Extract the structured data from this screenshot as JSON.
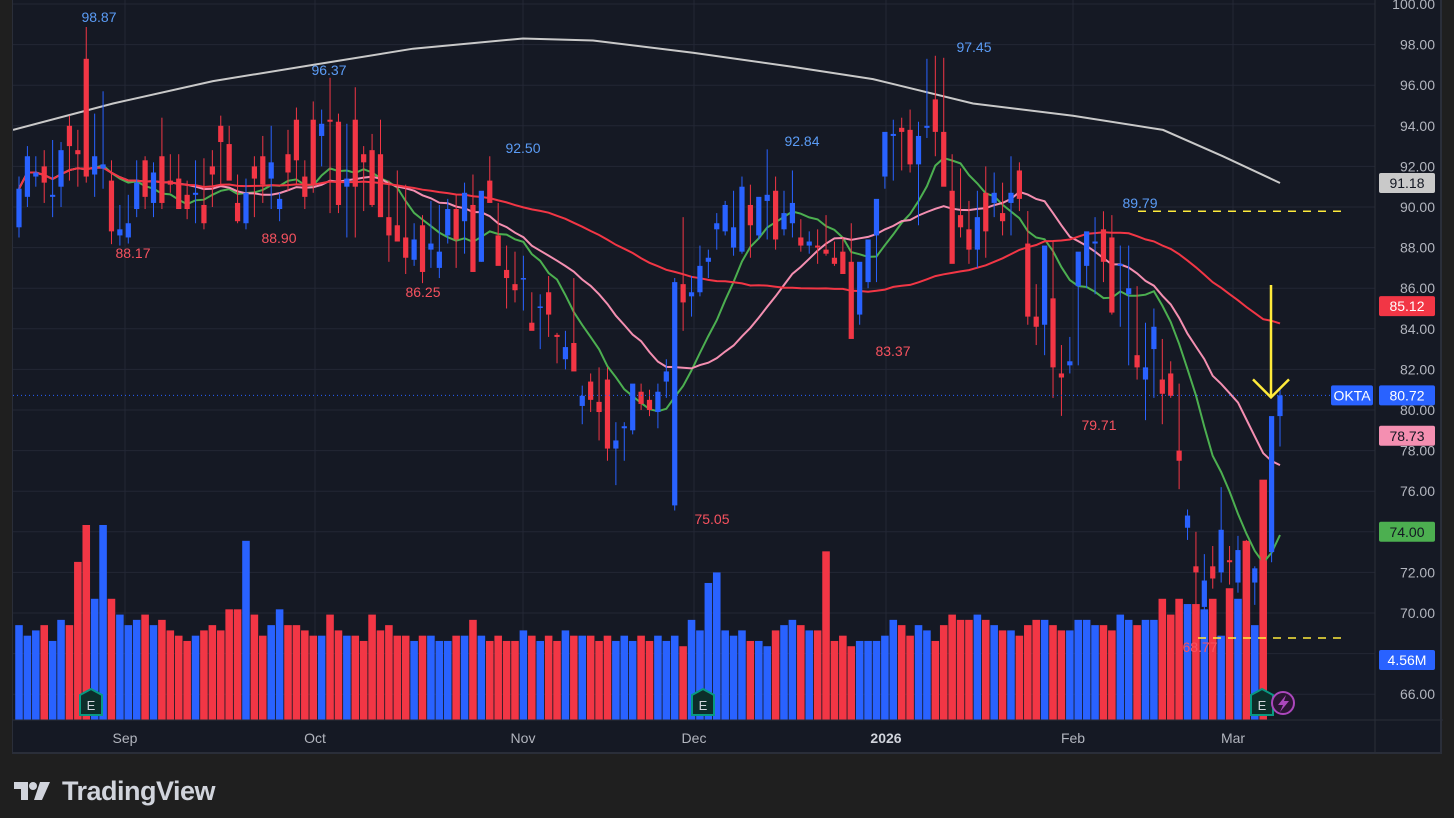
{
  "chart_data": {
    "type": "candlestick",
    "symbol": "OKTA",
    "title": "",
    "xlabel": "",
    "ylabel": "",
    "ylim": [
      65,
      100
    ],
    "grid": true,
    "x_tick_labels": [
      "Sep",
      "Oct",
      "Nov",
      "Dec",
      "2026",
      "Feb",
      "Mar"
    ],
    "y_tick_labels": [
      "100.00",
      "98.00",
      "96.00",
      "94.00",
      "92.00",
      "90.00",
      "88.00",
      "86.00",
      "84.00",
      "82.00",
      "80.00",
      "78.00",
      "76.00",
      "74.00",
      "72.00",
      "70.00",
      "66.00"
    ],
    "high_low_annotations": [
      {
        "label": "98.87",
        "type": "high"
      },
      {
        "label": "88.17",
        "type": "low"
      },
      {
        "label": "96.37",
        "type": "high"
      },
      {
        "label": "88.90",
        "type": "low"
      },
      {
        "label": "86.25",
        "type": "low"
      },
      {
        "label": "92.50",
        "type": "high"
      },
      {
        "label": "75.05",
        "type": "low"
      },
      {
        "label": "92.84",
        "type": "high"
      },
      {
        "label": "83.37",
        "type": "low"
      },
      {
        "label": "97.45",
        "type": "high"
      },
      {
        "label": "79.71",
        "type": "low"
      },
      {
        "label": "89.79",
        "type": "high"
      },
      {
        "label": "68.77",
        "type": "low"
      }
    ],
    "price_labels": [
      {
        "name": "MA200",
        "value": "91.18",
        "color": "#c9c9c9"
      },
      {
        "name": "MA50",
        "value": "85.12",
        "color": "#f23645"
      },
      {
        "name": "OKTA last",
        "value": "80.72",
        "color": "#2962ff"
      },
      {
        "name": "MA20",
        "value": "78.73",
        "color": "#f48fb1"
      },
      {
        "name": "MA10",
        "value": "74.00",
        "color": "#4caf50"
      },
      {
        "name": "Volume",
        "value": "4.56M",
        "color": "#2962ff"
      }
    ],
    "horizontal_lines": [
      {
        "value": 89.79,
        "style": "dashed",
        "color": "#ffeb3b"
      },
      {
        "value": 68.77,
        "style": "dashed",
        "color": "#ffeb3b"
      },
      {
        "value": 80.72,
        "style": "dotted",
        "color": "#2962ff"
      }
    ],
    "annotation_arrow": {
      "color": "#ffeb3b",
      "direction": "down",
      "points_to": 80.72
    },
    "earnings_markers": [
      "Sep",
      "Dec",
      "Mar"
    ],
    "candles": [
      [
        89,
        91.5,
        88.5,
        90.9
      ],
      [
        90.5,
        93,
        90,
        92.5
      ],
      [
        91.5,
        92.5,
        91,
        91.7
      ],
      [
        92,
        92.8,
        90.2,
        91.2
      ],
      [
        90.5,
        93.3,
        89.5,
        90.6
      ],
      [
        91,
        93.2,
        90,
        92.8
      ],
      [
        94,
        94.5,
        91.3,
        93
      ],
      [
        92.8,
        93.8,
        91,
        92.6
      ],
      [
        97.3,
        98.87,
        91.2,
        91.5
      ],
      [
        91.6,
        94.6,
        90.5,
        92.5
      ],
      [
        91.9,
        95.7,
        90.9,
        92.1
      ],
      [
        91.3,
        92.3,
        88.17,
        88.8
      ],
      [
        88.6,
        90.1,
        88.1,
        88.9
      ],
      [
        88.5,
        90.6,
        88.2,
        89.2
      ],
      [
        89.9,
        92.3,
        89.5,
        91.2
      ],
      [
        92.3,
        92.5,
        89.9,
        90.5
      ],
      [
        90.2,
        92.2,
        89.5,
        91.7
      ],
      [
        92.5,
        94.4,
        89.9,
        90.2
      ],
      [
        91.3,
        92.6,
        90.7,
        91.1
      ],
      [
        91.4,
        92.6,
        89.9,
        89.9
      ],
      [
        90.6,
        91.3,
        89.4,
        89.9
      ],
      [
        90.6,
        92.3,
        89.2,
        90.7
      ],
      [
        90.1,
        92.4,
        88.9,
        89.2
      ],
      [
        92,
        92.8,
        90,
        91.6
      ],
      [
        94,
        94.5,
        91.1,
        93.2
      ],
      [
        93.1,
        94,
        91.5,
        91.3
      ],
      [
        90.2,
        91.6,
        89.2,
        89.3
      ],
      [
        89.2,
        91.4,
        88.9,
        90.7
      ],
      [
        92,
        92.5,
        89.5,
        91.4
      ],
      [
        92.5,
        93.5,
        90.2,
        91.1
      ],
      [
        91.4,
        94,
        89.9,
        92.2
      ],
      [
        89.9,
        90.7,
        89.3,
        90.4
      ],
      [
        92.6,
        93.8,
        90.8,
        91.7
      ],
      [
        94.3,
        94.9,
        91.1,
        92.3
      ],
      [
        91.5,
        92.3,
        89.9,
        90.5
      ],
      [
        94.3,
        95.2,
        90.7,
        91.1
      ],
      [
        93.5,
        94.8,
        92,
        94.1
      ],
      [
        94.3,
        96.37,
        89.7,
        94.2
      ],
      [
        94.2,
        94.6,
        89.7,
        90.1
      ],
      [
        91,
        94.1,
        88.5,
        91.4
      ],
      [
        94.3,
        95.9,
        88.5,
        91
      ],
      [
        92.6,
        93,
        89.8,
        92.2
      ],
      [
        92.8,
        93.6,
        90,
        90.1
      ],
      [
        92.6,
        94.3,
        90,
        89.5
      ],
      [
        89.5,
        91.3,
        87.3,
        88.6
      ],
      [
        89.1,
        91.8,
        88.3,
        88.3
      ],
      [
        88.5,
        91.1,
        86.7,
        87.5
      ],
      [
        87.4,
        89.2,
        87.1,
        88.4
      ],
      [
        89.1,
        89.6,
        86.25,
        86.8
      ],
      [
        87.9,
        90.3,
        87,
        88.2
      ],
      [
        87,
        90.1,
        86.5,
        87.8
      ],
      [
        88.6,
        90.4,
        88.2,
        89.9
      ],
      [
        89.9,
        90.6,
        87,
        88.4
      ],
      [
        89.3,
        91.2,
        87.7,
        90.7
      ],
      [
        90.1,
        91.6,
        86.8,
        86.8
      ],
      [
        87.3,
        90.3,
        87.3,
        90.8
      ],
      [
        91.3,
        92.5,
        90.5,
        90.2
      ],
      [
        88.6,
        90.2,
        87.8,
        87.1
      ],
      [
        86.9,
        88.1,
        85,
        86.5
      ],
      [
        86.2,
        87.8,
        85.3,
        85.9
      ],
      [
        86.5,
        87.6,
        84.9,
        86.5
      ],
      [
        84.3,
        85.8,
        84.1,
        83.9
      ],
      [
        85.1,
        85.7,
        83,
        85.1
      ],
      [
        85.8,
        86.6,
        83.6,
        84.7
      ],
      [
        83.7,
        83.8,
        82.3,
        83.6
      ],
      [
        82.5,
        83.9,
        82,
        83.1
      ],
      [
        83.3,
        86.5,
        83,
        81.9
      ],
      [
        80.2,
        81.2,
        79.3,
        80.7
      ],
      [
        81.4,
        81.8,
        79.9,
        80.5
      ],
      [
        80.4,
        82.1,
        78.5,
        79.9
      ],
      [
        81.5,
        82.1,
        77.5,
        78.1
      ],
      [
        78.1,
        79.4,
        76.3,
        78.5
      ],
      [
        79.1,
        79.4,
        77.5,
        79.2
      ],
      [
        79,
        81.2,
        78.8,
        81.3
      ],
      [
        80.9,
        81.3,
        80,
        80.3
      ],
      [
        80.5,
        81,
        79.7,
        80
      ],
      [
        79.9,
        81.3,
        79.1,
        80.9
      ],
      [
        81.4,
        82.5,
        80.6,
        81.9
      ],
      [
        75.3,
        86.5,
        75.05,
        86.3
      ],
      [
        86.2,
        89.5,
        83.9,
        85.3
      ],
      [
        85.6,
        86.6,
        84.6,
        85.8
      ],
      [
        85.8,
        88.1,
        85.6,
        87.1
      ],
      [
        87.3,
        87.9,
        86.5,
        87.5
      ],
      [
        88.9,
        89.7,
        87.9,
        89.2
      ],
      [
        88.8,
        90.3,
        88.6,
        90.1
      ],
      [
        88,
        90.8,
        87.6,
        89
      ],
      [
        87.8,
        91.5,
        87.7,
        91
      ],
      [
        90.1,
        91.1,
        87.5,
        89.1
      ],
      [
        88.6,
        90.1,
        88.4,
        90.5
      ],
      [
        90.3,
        92.84,
        88.4,
        90.6
      ],
      [
        90.8,
        91.5,
        87.9,
        88.4
      ],
      [
        88.9,
        90.8,
        88.6,
        89.7
      ],
      [
        89.2,
        91.8,
        88.5,
        90.2
      ],
      [
        88.5,
        89.4,
        87.8,
        88.1
      ],
      [
        88.1,
        88.8,
        87.7,
        88.3
      ],
      [
        88.1,
        88.9,
        87.2,
        88
      ],
      [
        87.9,
        89.6,
        87.6,
        87.7
      ],
      [
        87.5,
        88.3,
        87.1,
        87.2
      ],
      [
        87.8,
        88.5,
        86.8,
        86.7
      ],
      [
        87.3,
        89.2,
        86,
        83.5
      ],
      [
        84.7,
        86.8,
        84.2,
        87.3
      ],
      [
        86.3,
        88.1,
        86,
        88.4
      ],
      [
        88.6,
        89.9,
        86.3,
        90.4
      ],
      [
        91.5,
        92.9,
        90.9,
        93.7
      ],
      [
        93.5,
        94.3,
        91.3,
        93.6
      ],
      [
        93.9,
        94.4,
        91.8,
        93.7
      ],
      [
        93.8,
        94.8,
        91.7,
        92.1
      ],
      [
        92.1,
        94.2,
        89.1,
        93.5
      ],
      [
        93.9,
        97.3,
        93.4,
        94
      ],
      [
        95.3,
        97.45,
        92.5,
        93.7
      ],
      [
        93.7,
        97.35,
        91.4,
        91
      ],
      [
        90.8,
        92.6,
        87.9,
        87.2
      ],
      [
        89.6,
        91.9,
        88.5,
        89
      ],
      [
        88.9,
        90.3,
        87.2,
        87.9
      ],
      [
        87.9,
        90.8,
        87,
        89.5
      ],
      [
        90.7,
        92,
        87.5,
        88.8
      ],
      [
        90.2,
        91.7,
        89.5,
        90.7
      ],
      [
        89.7,
        91.2,
        88.6,
        89.3
      ],
      [
        90.2,
        92.5,
        88.6,
        90.7
      ],
      [
        91.8,
        92.2,
        89.8,
        90.4
      ],
      [
        88.2,
        89.8,
        84.2,
        84.6
      ],
      [
        84.6,
        86.2,
        83.2,
        84.1
      ],
      [
        84.2,
        86.8,
        82.7,
        88.1
      ],
      [
        85.5,
        88.3,
        80.6,
        82.1
      ],
      [
        81.8,
        83.2,
        79.71,
        81.6
      ],
      [
        82.2,
        83.6,
        81.8,
        82.4
      ],
      [
        86.1,
        87.4,
        82.2,
        87.8
      ],
      [
        87.1,
        88.5,
        86,
        88.8
      ],
      [
        88.2,
        89.5,
        85.7,
        88.3
      ],
      [
        88.9,
        89.79,
        86.3,
        87.3
      ],
      [
        88.5,
        89.6,
        84.7,
        84.8
      ],
      [
        87.1,
        88.1,
        84.1,
        87.2
      ],
      [
        85.7,
        88.1,
        82.2,
        86
      ],
      [
        82.7,
        86.1,
        81.5,
        82.1
      ],
      [
        81.5,
        84.3,
        79.5,
        82.1
      ],
      [
        83,
        85,
        80.6,
        84.1
      ],
      [
        81.5,
        83.5,
        79.3,
        80.8
      ],
      [
        81.8,
        82.4,
        80.6,
        80.7
      ],
      [
        78,
        81.3,
        76.1,
        77.5
      ],
      [
        74.2,
        75.1,
        73.6,
        74.8
      ],
      [
        72.3,
        74,
        68.77,
        72
      ],
      [
        70.3,
        72.9,
        68.9,
        71.6
      ],
      [
        72.3,
        73.3,
        71.2,
        71.7
      ],
      [
        72,
        76.2,
        71.5,
        74.1
      ],
      [
        72.6,
        73.3,
        71.4,
        72.5
      ],
      [
        71.5,
        73.8,
        71,
        73.1
      ],
      [
        73.5,
        73.6,
        70.2,
        71.1
      ],
      [
        71.5,
        72.3,
        70.4,
        72.2
      ],
      [
        73.3,
        73.8,
        71.3,
        71.7
      ],
      [
        73,
        79.6,
        72.5,
        79.7
      ],
      [
        79.7,
        81.1,
        78.2,
        80.72
      ]
    ],
    "volume_millions": [
      1.8,
      1.6,
      1.7,
      1.8,
      1.5,
      1.9,
      1.8,
      3.0,
      3.7,
      2.3,
      3.7,
      2.3,
      2.0,
      1.8,
      1.9,
      2.0,
      1.8,
      1.9,
      1.7,
      1.6,
      1.5,
      1.6,
      1.7,
      1.8,
      1.7,
      2.1,
      2.1,
      3.4,
      2.0,
      1.6,
      1.8,
      2.1,
      1.8,
      1.8,
      1.7,
      1.6,
      1.6,
      2.0,
      1.7,
      1.6,
      1.6,
      1.5,
      2.0,
      1.7,
      1.8,
      1.6,
      1.6,
      1.5,
      1.6,
      1.6,
      1.5,
      1.5,
      1.6,
      1.6,
      1.9,
      1.6,
      1.5,
      1.6,
      1.5,
      1.5,
      1.7,
      1.6,
      1.5,
      1.6,
      1.5,
      1.7,
      1.6,
      1.6,
      1.6,
      1.5,
      1.6,
      1.5,
      1.6,
      1.5,
      1.6,
      1.5,
      1.6,
      1.5,
      1.6,
      1.4,
      1.9,
      1.7,
      2.6,
      2.8,
      1.7,
      1.6,
      1.7,
      1.5,
      1.5,
      1.4,
      1.7,
      1.8,
      1.9,
      1.8,
      1.7,
      1.7,
      3.2,
      1.5,
      1.6,
      1.4,
      1.5,
      1.5,
      1.5,
      1.6,
      1.9,
      1.8,
      1.6,
      1.8,
      1.7,
      1.5,
      1.8,
      2.0,
      1.9,
      1.9,
      2.0,
      1.9,
      1.8,
      1.7,
      1.7,
      1.6,
      1.8,
      1.9,
      1.9,
      1.8,
      1.7,
      1.7,
      1.9,
      1.9,
      1.8,
      1.8,
      1.7,
      2.0,
      1.9,
      1.8,
      1.9,
      1.9,
      2.3,
      2.0,
      2.3,
      2.2,
      2.2,
      2.1,
      2.3,
      1.6,
      2.5,
      2.3,
      3.4,
      1.8,
      4.56
    ],
    "moving_averages": [
      {
        "name": "MA10",
        "color": "#4caf50",
        "last": 74.0
      },
      {
        "name": "MA20",
        "color": "#f48fb1",
        "last": 78.73
      },
      {
        "name": "MA50",
        "color": "#f23645",
        "last": 85.12
      },
      {
        "name": "MA200",
        "color": "#c9c9c9",
        "last": 91.18
      }
    ]
  },
  "colors": {
    "background": "#151924",
    "outer_background": "#1f1f1f",
    "grid": "#232735",
    "up": "#2962ff",
    "down": "#f23645",
    "axis_text": "#b2b5be",
    "high_label": "#5b9cf6",
    "low_label": "#f7525f",
    "annotation": "#ffeb3b"
  },
  "footer": {
    "brand": "TradingView"
  }
}
